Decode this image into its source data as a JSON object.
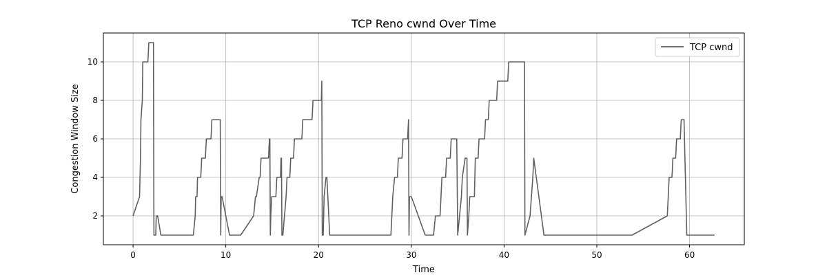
{
  "chart_data": {
    "type": "line",
    "title": "TCP Reno cwnd Over Time",
    "xlabel": "Time",
    "ylabel": "Congestion Window Size",
    "xlim": [
      -3.2,
      65.9
    ],
    "ylim": [
      0.5,
      11.5
    ],
    "xticks": [
      0,
      10,
      20,
      30,
      40,
      50,
      60
    ],
    "yticks": [
      2,
      4,
      6,
      8,
      10
    ],
    "grid": true,
    "legend_position": "top-right",
    "series": [
      {
        "name": "TCP cwnd",
        "color": "#606060",
        "points": [
          [
            0.0,
            2
          ],
          [
            0.7,
            3
          ],
          [
            0.8,
            5
          ],
          [
            0.85,
            7
          ],
          [
            1.0,
            8
          ],
          [
            1.05,
            10
          ],
          [
            1.6,
            10
          ],
          [
            1.7,
            11
          ],
          [
            2.2,
            11
          ],
          [
            2.25,
            1
          ],
          [
            2.45,
            1
          ],
          [
            2.5,
            2
          ],
          [
            2.65,
            2
          ],
          [
            3.0,
            1
          ],
          [
            6.5,
            1
          ],
          [
            6.7,
            2
          ],
          [
            6.75,
            3
          ],
          [
            6.9,
            3
          ],
          [
            6.95,
            4
          ],
          [
            7.3,
            4
          ],
          [
            7.4,
            5
          ],
          [
            7.8,
            5
          ],
          [
            7.9,
            6
          ],
          [
            8.4,
            6
          ],
          [
            8.5,
            7
          ],
          [
            9.4,
            7
          ],
          [
            9.45,
            1
          ],
          [
            9.5,
            3
          ],
          [
            9.6,
            3
          ],
          [
            10.4,
            1
          ],
          [
            11.6,
            1
          ],
          [
            13.0,
            2
          ],
          [
            13.2,
            3
          ],
          [
            13.3,
            3
          ],
          [
            13.6,
            4
          ],
          [
            13.7,
            4
          ],
          [
            13.8,
            5
          ],
          [
            14.6,
            5
          ],
          [
            14.7,
            6
          ],
          [
            14.75,
            6
          ],
          [
            14.8,
            1
          ],
          [
            14.85,
            2
          ],
          [
            14.95,
            3
          ],
          [
            15.4,
            3
          ],
          [
            15.5,
            4
          ],
          [
            15.9,
            4
          ],
          [
            15.95,
            5
          ],
          [
            16.0,
            5
          ],
          [
            16.05,
            1
          ],
          [
            16.15,
            1
          ],
          [
            16.5,
            3
          ],
          [
            16.6,
            4
          ],
          [
            16.9,
            4
          ],
          [
            17.0,
            5
          ],
          [
            17.3,
            5
          ],
          [
            17.4,
            6
          ],
          [
            18.2,
            6
          ],
          [
            18.3,
            7
          ],
          [
            19.3,
            7
          ],
          [
            19.4,
            8
          ],
          [
            20.3,
            8
          ],
          [
            20.35,
            9
          ],
          [
            20.4,
            1
          ],
          [
            20.5,
            1
          ],
          [
            20.6,
            3
          ],
          [
            20.8,
            4
          ],
          [
            20.9,
            4
          ],
          [
            21.2,
            1
          ],
          [
            27.8,
            1
          ],
          [
            27.9,
            2
          ],
          [
            28.0,
            3
          ],
          [
            28.2,
            4
          ],
          [
            28.5,
            4
          ],
          [
            28.6,
            5
          ],
          [
            29.0,
            5
          ],
          [
            29.1,
            6
          ],
          [
            29.6,
            6
          ],
          [
            29.7,
            7
          ],
          [
            29.75,
            1
          ],
          [
            29.8,
            3
          ],
          [
            30.0,
            3
          ],
          [
            31.5,
            1
          ],
          [
            32.4,
            1
          ],
          [
            32.6,
            2
          ],
          [
            32.7,
            2
          ],
          [
            33.1,
            2
          ],
          [
            33.2,
            3
          ],
          [
            33.3,
            4
          ],
          [
            33.7,
            4
          ],
          [
            33.8,
            5
          ],
          [
            34.2,
            5
          ],
          [
            34.3,
            6
          ],
          [
            34.9,
            6
          ],
          [
            35.0,
            1
          ],
          [
            35.4,
            3
          ],
          [
            35.5,
            4
          ],
          [
            35.8,
            5
          ],
          [
            36.0,
            5
          ],
          [
            36.05,
            1
          ],
          [
            36.2,
            2
          ],
          [
            36.3,
            3
          ],
          [
            36.8,
            3
          ],
          [
            36.9,
            5
          ],
          [
            37.2,
            5
          ],
          [
            37.3,
            6
          ],
          [
            37.9,
            6
          ],
          [
            38.0,
            7
          ],
          [
            38.3,
            7
          ],
          [
            38.4,
            8
          ],
          [
            39.2,
            8
          ],
          [
            39.3,
            9
          ],
          [
            40.4,
            9
          ],
          [
            40.5,
            10
          ],
          [
            42.2,
            10
          ],
          [
            42.25,
            1
          ],
          [
            42.8,
            2
          ],
          [
            43.1,
            4
          ],
          [
            43.2,
            5
          ],
          [
            44.3,
            1
          ],
          [
            53.8,
            1
          ],
          [
            57.6,
            2
          ],
          [
            57.7,
            3
          ],
          [
            57.8,
            4
          ],
          [
            58.1,
            4
          ],
          [
            58.2,
            5
          ],
          [
            58.5,
            5
          ],
          [
            58.6,
            6
          ],
          [
            59.0,
            6
          ],
          [
            59.1,
            7
          ],
          [
            59.4,
            7
          ],
          [
            59.7,
            1
          ],
          [
            62.7,
            1
          ]
        ]
      }
    ]
  }
}
